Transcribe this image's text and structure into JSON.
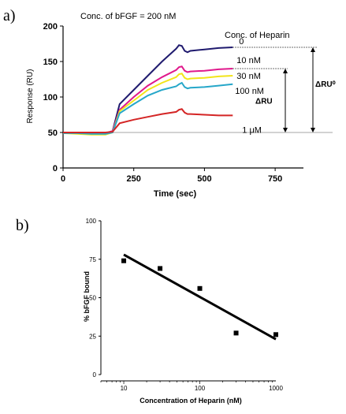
{
  "panel_labels": [
    "a)",
    "b)"
  ],
  "chart_data": [
    {
      "type": "line",
      "title": "Conc. of bFGF = 200 nM",
      "xlabel": "Time (sec)",
      "ylabel": "Response (RU)",
      "xlim": [
        0,
        850
      ],
      "ylim": [
        0,
        200
      ],
      "xticks": [
        0,
        250,
        500,
        750
      ],
      "yticks": [
        0,
        50,
        100,
        150,
        200
      ],
      "grid": false,
      "baseline_y": 50,
      "legend_title": "Conc. of Heparin",
      "annotations": [
        "ΔRU",
        "ΔRU⁰"
      ],
      "series": [
        {
          "name": "0",
          "color": "#1f1a6e",
          "x": [
            0,
            50,
            100,
            150,
            175,
            200,
            250,
            300,
            350,
            400,
            410,
            420,
            430,
            440,
            450,
            500,
            550,
            600
          ],
          "y": [
            50,
            50,
            49,
            49,
            52,
            90,
            110,
            130,
            150,
            168,
            173,
            172,
            165,
            163,
            165,
            167,
            169,
            170
          ]
        },
        {
          "name": "10 nM",
          "color": "#e0198c",
          "x": [
            0,
            50,
            100,
            150,
            175,
            200,
            250,
            300,
            350,
            400,
            410,
            420,
            430,
            440,
            450,
            500,
            550,
            600
          ],
          "y": [
            50,
            50,
            49,
            49,
            52,
            82,
            100,
            116,
            128,
            138,
            142,
            143,
            137,
            135,
            136,
            137,
            139,
            140
          ]
        },
        {
          "name": "30 nM",
          "color": "#f2e41a",
          "x": [
            0,
            50,
            100,
            150,
            175,
            200,
            250,
            300,
            350,
            400,
            410,
            420,
            430,
            440,
            450,
            500,
            550,
            600
          ],
          "y": [
            49,
            48,
            47,
            47,
            50,
            80,
            95,
            110,
            120,
            128,
            132,
            133,
            127,
            125,
            126,
            127,
            129,
            130
          ]
        },
        {
          "name": "100 nM",
          "color": "#26a7c9",
          "x": [
            0,
            50,
            100,
            150,
            175,
            200,
            250,
            300,
            350,
            400,
            410,
            420,
            430,
            440,
            450,
            500,
            550,
            600
          ],
          "y": [
            49,
            49,
            48,
            48,
            50,
            77,
            90,
            102,
            110,
            115,
            118,
            120,
            114,
            112,
            113,
            114,
            116,
            118
          ]
        },
        {
          "name": "1 μM",
          "color": "#d42525",
          "x": [
            0,
            50,
            100,
            150,
            175,
            200,
            250,
            300,
            350,
            400,
            410,
            420,
            430,
            440,
            450,
            500,
            550,
            600
          ],
          "y": [
            50,
            50,
            50,
            50,
            51,
            63,
            68,
            72,
            76,
            79,
            82,
            83,
            78,
            76,
            76,
            75,
            74,
            74
          ]
        }
      ]
    },
    {
      "type": "scatter",
      "xlabel": "Concentration of Heparin (nM)",
      "ylabel": "% bFGF bound",
      "xscale": "log",
      "xlim": [
        5,
        1000
      ],
      "ylim": [
        0,
        100
      ],
      "xticks": [
        10,
        100,
        1000
      ],
      "xtick_labels": [
        "10",
        "100",
        "1000"
      ],
      "yticks": [
        0,
        25,
        50,
        75,
        100
      ],
      "grid": false,
      "points": [
        {
          "x": 10,
          "y": 74
        },
        {
          "x": 30,
          "y": 69
        },
        {
          "x": 100,
          "y": 56
        },
        {
          "x": 300,
          "y": 27
        },
        {
          "x": 1000,
          "y": 26
        }
      ],
      "fit_line": {
        "x": [
          10,
          1000
        ],
        "y": [
          78,
          23
        ]
      }
    }
  ]
}
